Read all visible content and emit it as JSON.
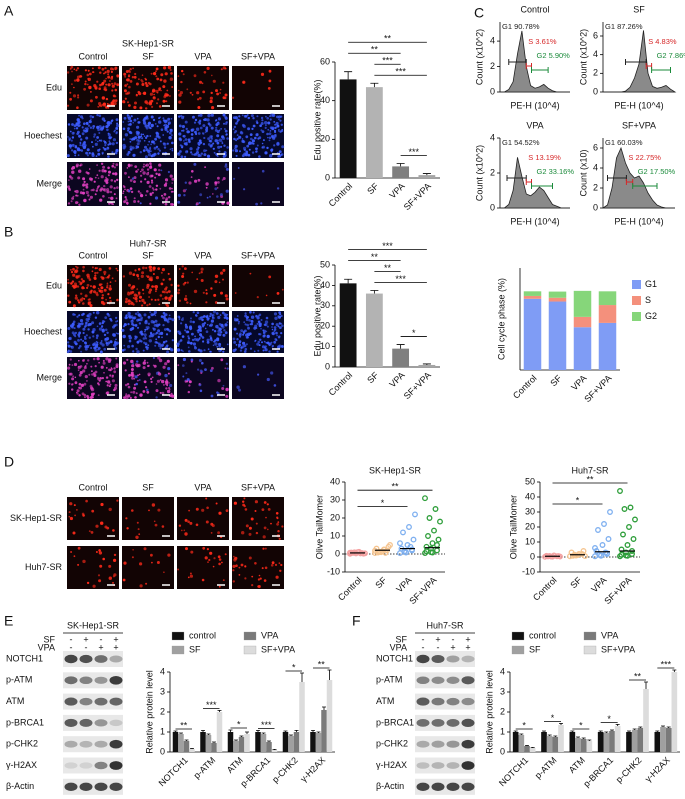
{
  "figure": {
    "panels": [
      "A",
      "B",
      "C",
      "D",
      "E",
      "F"
    ],
    "A": {
      "title": "SK-Hep1-SR",
      "columns": [
        "Control",
        "SF",
        "VPA",
        "SF+VPA"
      ],
      "rows": [
        "Edu",
        "Hoechest",
        "Merge"
      ]
    },
    "B": {
      "title": "Huh7-SR",
      "columns": [
        "Control",
        "SF",
        "VPA",
        "SF+VPA"
      ],
      "rows": [
        "Edu",
        "Hoechest",
        "Merge"
      ]
    },
    "D": {
      "columns": [
        "Control",
        "SF",
        "VPA",
        "SF+VPA"
      ],
      "rows": [
        "SK-Hep1-SR",
        "Huh7-SR"
      ]
    },
    "E": {
      "title": "SK-Hep1-SR",
      "treatments": [
        {
          "name": "SF",
          "signs": [
            "-",
            "+",
            "-",
            "+"
          ]
        },
        {
          "name": "VPA",
          "signs": [
            "-",
            "-",
            "+",
            "+"
          ]
        }
      ],
      "proteins": [
        "NOTCH1",
        "p-ATM",
        "ATM",
        "p-BRCA1",
        "p-CHK2",
        "γ-H2AX",
        "β-Actin"
      ]
    },
    "F": {
      "title": "Huh7-SR",
      "treatments": [
        {
          "name": "SF",
          "signs": [
            "-",
            "+",
            "-",
            "+"
          ]
        },
        {
          "name": "VPA",
          "signs": [
            "-",
            "-",
            "+",
            "+"
          ]
        }
      ],
      "proteins": [
        "NOTCH1",
        "p-ATM",
        "ATM",
        "p-BRCA1",
        "p-CHK2",
        "γ-H2AX",
        "β-Actin"
      ]
    }
  },
  "chart_data": [
    {
      "type": "bar",
      "ylabel": "Edu positive rate(%)",
      "categories": [
        "Control",
        "SF",
        "VPA",
        "SF+VPA"
      ],
      "values": [
        51,
        47,
        6,
        1.5
      ],
      "errors": [
        4,
        2,
        1.5,
        0.8
      ],
      "colors": [
        "#111111",
        "#b3b3b3",
        "#7f7f7f",
        "#a6a6a6"
      ],
      "ylim": [
        0,
        60
      ],
      "yticks": [
        0,
        20,
        40,
        60
      ],
      "brackets": [
        {
          "from": "VPA",
          "to": "SF+VPA",
          "label": "***"
        },
        {
          "from": "SF",
          "to": "SF+VPA",
          "label": "***"
        },
        {
          "from": "SF",
          "to": "VPA",
          "label": "***"
        },
        {
          "from": "Control",
          "to": "VPA",
          "label": "**"
        },
        {
          "from": "Control",
          "to": "SF+VPA",
          "label": "**"
        }
      ]
    },
    {
      "type": "area",
      "title": "Control",
      "ylabel": "Count (x10^2)",
      "xlabel": "PE-H (10^4)",
      "x": [
        0,
        0.5,
        1,
        1.5,
        2,
        2.5,
        3,
        3.5,
        4,
        4.5,
        5,
        5.5,
        6,
        6.5,
        7,
        7.5,
        8
      ],
      "values": [
        0,
        0,
        0.2,
        0.8,
        3.0,
        4.8,
        2.0,
        0.5,
        0.3,
        0.4,
        0.6,
        0.3,
        0.1,
        0,
        0,
        0,
        0
      ],
      "xlim": [
        0,
        8
      ],
      "ylim": [
        0,
        5.5
      ],
      "yticks": [
        0,
        2,
        4
      ],
      "gates": [
        {
          "label": "G1 90.78%",
          "color": "#222222",
          "range": [
            1.0,
            3.0
          ]
        },
        {
          "label": "S 3.61%",
          "color": "#d62728",
          "range": [
            3.0,
            3.6
          ]
        },
        {
          "label": "G2 5.90%",
          "color": "#1a8a3a",
          "range": [
            3.6,
            5.5
          ]
        }
      ]
    },
    {
      "type": "area",
      "title": "SF",
      "ylabel": "Count (x10^2)",
      "xlabel": "PE-H (10^4)",
      "x": [
        0,
        0.5,
        1,
        1.5,
        2,
        2.5,
        3,
        3.5,
        4,
        4.5,
        5,
        5.5,
        6,
        6.5,
        7,
        7.5,
        8
      ],
      "values": [
        0,
        0,
        0,
        0,
        0,
        0.1,
        0.5,
        1.5,
        3,
        6.6,
        2,
        0.6,
        0.4,
        0.5,
        0.7,
        0.3,
        0
      ],
      "xlim": [
        0,
        8
      ],
      "ylim": [
        0,
        7.5
      ],
      "yticks": [
        0,
        2,
        4,
        6
      ],
      "gates": [
        {
          "label": "G1 87.26%",
          "color": "#222222",
          "range": [
            2.5,
            4.8
          ]
        },
        {
          "label": "S 4.83%",
          "color": "#d62728",
          "range": [
            4.8,
            5.4
          ]
        },
        {
          "label": "G2 7.86%",
          "color": "#1a8a3a",
          "range": [
            5.4,
            7.5
          ]
        }
      ]
    },
    {
      "type": "area",
      "title": "VPA",
      "ylabel": "Count (x10^2)",
      "xlabel": "PE-H (10^4)",
      "x": [
        0,
        0.5,
        1,
        1.5,
        2,
        2.5,
        3,
        3.5,
        4,
        4.5,
        5,
        5.5,
        6,
        6.5,
        7,
        7.5,
        8
      ],
      "values": [
        0,
        0,
        0.2,
        1,
        2.9,
        1.8,
        0.8,
        0.7,
        0.9,
        1.2,
        1.0,
        0.6,
        0.2,
        0.1,
        0,
        0,
        0
      ],
      "xlim": [
        0,
        8
      ],
      "ylim": [
        0,
        4
      ],
      "yticks": [
        0,
        2,
        4
      ],
      "gates": [
        {
          "label": "G1 54.52%",
          "color": "#222222",
          "range": [
            0.8,
            3.0
          ]
        },
        {
          "label": "S 13.19%",
          "color": "#d62728",
          "range": [
            3.0,
            3.6
          ]
        },
        {
          "label": "G2 33.16%",
          "color": "#1a8a3a",
          "range": [
            3.6,
            6.0
          ]
        }
      ]
    },
    {
      "type": "area",
      "title": "SF+VPA",
      "ylabel": "Count (x10)",
      "xlabel": "PE-H (10^4)",
      "x": [
        0,
        0.5,
        1,
        1.5,
        2,
        2.5,
        3,
        3.5,
        4,
        4.5,
        5,
        5.5,
        6,
        6.5,
        7,
        7.5,
        8
      ],
      "values": [
        0,
        0.3,
        2,
        5,
        6,
        4.5,
        3.5,
        3,
        3.2,
        2.5,
        1.5,
        0.8,
        0.3,
        0.1,
        0,
        0,
        0
      ],
      "xlim": [
        0,
        8
      ],
      "ylim": [
        0,
        7
      ],
      "yticks": [
        0,
        2,
        4,
        6
      ],
      "gates": [
        {
          "label": "G1 60.03%",
          "color": "#222222",
          "range": [
            0.5,
            2.6
          ]
        },
        {
          "label": "S 22.75%",
          "color": "#d62728",
          "range": [
            2.6,
            3.3
          ]
        },
        {
          "label": "G2 17.50%",
          "color": "#1a8a3a",
          "range": [
            3.3,
            6.0
          ]
        }
      ]
    },
    {
      "type": "bar",
      "ylabel": "Edu positive rate(%)",
      "categories": [
        "Control",
        "SF",
        "VPA",
        "SF+VPA"
      ],
      "values": [
        41,
        36,
        9,
        1
      ],
      "errors": [
        2,
        1.5,
        2,
        0.5
      ],
      "colors": [
        "#111111",
        "#b3b3b3",
        "#7f7f7f",
        "#a6a6a6"
      ],
      "ylim": [
        0,
        50
      ],
      "yticks": [
        0,
        10,
        20,
        30,
        40,
        50
      ],
      "brackets": [
        {
          "from": "VPA",
          "to": "SF+VPA",
          "label": "*"
        },
        {
          "from": "SF",
          "to": "SF+VPA",
          "label": "***"
        },
        {
          "from": "SF",
          "to": "VPA",
          "label": "**"
        },
        {
          "from": "Control",
          "to": "VPA",
          "label": "**"
        },
        {
          "from": "Control",
          "to": "SF+VPA",
          "label": "***"
        }
      ]
    },
    {
      "type": "stacked_bar",
      "ylabel": "Cell cycle phase (%)",
      "categories": [
        "Control",
        "SF",
        "VPA",
        "SF+VPA"
      ],
      "series": [
        {
          "name": "G1",
          "color": "#7f9cf5",
          "values": [
            90.78,
            87.26,
            54.52,
            60.03
          ]
        },
        {
          "name": "S",
          "color": "#f4907c",
          "values": [
            3.61,
            4.83,
            13.19,
            22.75
          ]
        },
        {
          "name": "G2",
          "color": "#86d67a",
          "values": [
            5.9,
            7.86,
            33.16,
            17.5
          ]
        }
      ],
      "ylim": [
        0,
        130
      ],
      "legend": "upper right"
    },
    {
      "type": "strip",
      "title": "SK-Hep1-SR",
      "ylabel": "Olive TailMomer",
      "categories": [
        "Control",
        "SF",
        "VPA",
        "SF+VPA"
      ],
      "colors": [
        "#f4a0a0",
        "#f5c48f",
        "#7fb0f0",
        "#2e9e3a"
      ],
      "values": [
        [
          0.1,
          0.3,
          0.5,
          0.8,
          1.0,
          0.2,
          0.6,
          1.2,
          0.4,
          0.9,
          0.3,
          0.7
        ],
        [
          0.5,
          1,
          2,
          3,
          1.5,
          4,
          0.8,
          2.5,
          5,
          1.2,
          0.6,
          1.8
        ],
        [
          0.5,
          1,
          2,
          3,
          5,
          8,
          12,
          15,
          22,
          1.5,
          4,
          6,
          0.8,
          2.5
        ],
        [
          0.5,
          1,
          2,
          4,
          6,
          8,
          10,
          13,
          18,
          20,
          25,
          31,
          3,
          5,
          1.5,
          0.8
        ]
      ],
      "means": [
        0.6,
        2.1,
        3,
        3.5
      ],
      "ylim": [
        -10,
        40
      ],
      "yticks": [
        -10,
        0,
        10,
        20,
        30,
        40
      ],
      "brackets": [
        {
          "from": "Control",
          "to": "VPA",
          "label": "*"
        },
        {
          "from": "Control",
          "to": "SF+VPA",
          "label": "**"
        }
      ]
    },
    {
      "type": "strip",
      "title": "Huh7-SR",
      "ylabel": "Olive TailMomer",
      "categories": [
        "Control",
        "SF",
        "VPA",
        "SF+VPA"
      ],
      "colors": [
        "#f4a0a0",
        "#f5c48f",
        "#7fb0f0",
        "#2e9e3a"
      ],
      "values": [
        [
          0.1,
          0.3,
          0.5,
          0.8,
          0.2,
          0.6,
          0.4,
          1,
          0.3,
          0.7
        ],
        [
          0.5,
          1,
          2,
          3,
          1.2,
          4,
          0.8,
          2,
          0.6,
          1.5
        ],
        [
          0.5,
          1,
          2,
          4,
          8,
          12,
          18,
          22,
          30,
          1.5,
          3,
          6,
          0.8,
          2.5
        ],
        [
          0.5,
          1,
          2,
          5,
          8,
          12,
          15,
          20,
          25,
          32,
          33,
          44,
          3,
          4,
          1.5,
          0.8
        ]
      ],
      "means": [
        0.5,
        1.5,
        3.5,
        4
      ],
      "ylim": [
        -10,
        50
      ],
      "yticks": [
        -10,
        0,
        10,
        20,
        30,
        40,
        50
      ],
      "brackets": [
        {
          "from": "Control",
          "to": "VPA",
          "label": "*"
        },
        {
          "from": "Control",
          "to": "SF+VPA",
          "label": "**"
        }
      ]
    },
    {
      "type": "grouped_bar",
      "ylabel": "Relative protein level",
      "categories": [
        "NOTCH1",
        "p-ATM",
        "ATM",
        "p-BRCA1",
        "p-CHK2",
        "γ-H2AX"
      ],
      "legend": "top",
      "ylim": [
        0,
        4
      ],
      "yticks": [
        0,
        1,
        2,
        3,
        4
      ],
      "series": [
        {
          "name": "control",
          "color": "#111111",
          "values": [
            1,
            1,
            1,
            1,
            1,
            1
          ],
          "errors": [
            0.05,
            0.08,
            0.1,
            0.08,
            0.05,
            0.08
          ]
        },
        {
          "name": "SF",
          "color": "#a0a0a0",
          "values": [
            0.9,
            0.85,
            0.55,
            0.9,
            0.8,
            0.95
          ],
          "errors": [
            0.05,
            0.05,
            0.05,
            0.05,
            0.05,
            0.05
          ]
        },
        {
          "name": "VPA",
          "color": "#7a7a7a",
          "values": [
            0.55,
            0.45,
            0.75,
            0.5,
            1.0,
            2.1
          ],
          "errors": [
            0.05,
            0.05,
            0.05,
            0.05,
            0.08,
            0.15
          ]
        },
        {
          "name": "SF+VPA",
          "color": "#dcdcdc",
          "values": [
            0.15,
            2.0,
            0.9,
            0.1,
            3.5,
            3.6
          ],
          "errors": [
            0.03,
            0.08,
            0.1,
            0.03,
            0.45,
            0.5
          ]
        }
      ],
      "significance": [
        "**",
        "***",
        "*",
        "***",
        "*",
        "**"
      ]
    },
    {
      "type": "grouped_bar",
      "ylabel": "Relative protein level",
      "categories": [
        "NOTCH1",
        "p-ATM",
        "ATM",
        "p-BRCA1",
        "p-CHK2",
        "γ-H2AX"
      ],
      "legend": "top",
      "ylim": [
        0,
        4
      ],
      "yticks": [
        0,
        1,
        2,
        3,
        4
      ],
      "series": [
        {
          "name": "control",
          "color": "#111111",
          "values": [
            1,
            1,
            1,
            1,
            1,
            1
          ],
          "errors": [
            0.05,
            0.05,
            0.05,
            0.05,
            0.05,
            0.05
          ]
        },
        {
          "name": "SF",
          "color": "#a0a0a0",
          "values": [
            0.85,
            0.8,
            0.7,
            0.95,
            1.1,
            1.25
          ],
          "errors": [
            0.05,
            0.05,
            0.05,
            0.05,
            0.05,
            0.05
          ]
        },
        {
          "name": "VPA",
          "color": "#7a7a7a",
          "values": [
            0.3,
            0.75,
            0.65,
            1.05,
            1.2,
            1.2
          ],
          "errors": [
            0.03,
            0.05,
            0.05,
            0.05,
            0.05,
            0.05
          ]
        },
        {
          "name": "SF+VPA",
          "color": "#dcdcdc",
          "values": [
            0.2,
            1.35,
            0.55,
            1.3,
            3.15,
            4.0
          ],
          "errors": [
            0.03,
            0.08,
            0.05,
            0.08,
            0.35,
            0.1
          ]
        }
      ],
      "significance": [
        "*",
        "*",
        "*",
        "*",
        "**",
        "***"
      ]
    }
  ]
}
